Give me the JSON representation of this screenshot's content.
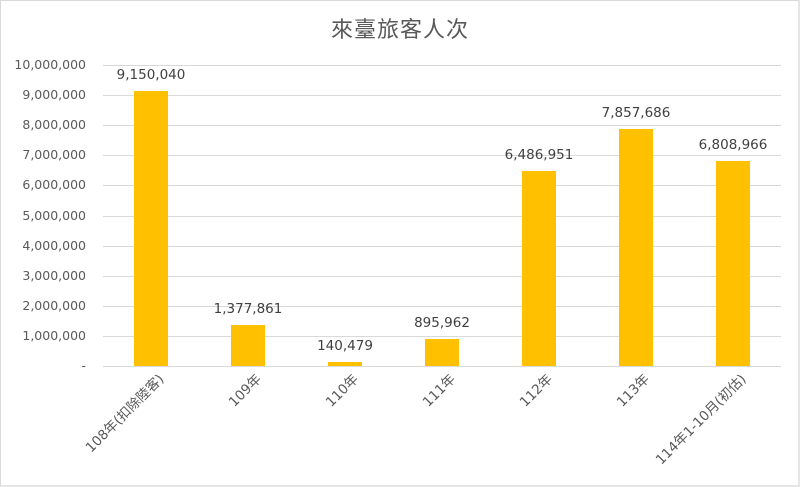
{
  "chart_data": {
    "type": "bar",
    "title": "來臺旅客人次",
    "xlabel": "",
    "ylabel": "",
    "ylim": [
      0,
      10000000
    ],
    "grid": true,
    "legend": null,
    "categories": [
      "108年(扣除陸客)",
      "109年",
      "110年",
      "111年",
      "112年",
      "113年",
      "114年1-10月(初估)"
    ],
    "values": [
      9150040,
      1377861,
      140479,
      895962,
      6486951,
      7857686,
      6808966
    ],
    "data_labels": [
      "9,150,040",
      "1,377,861",
      "140,479",
      "895,962",
      "6,486,951",
      "7,857,686",
      "6,808,966"
    ],
    "y_ticks": [
      "10,000,000",
      "9,000,000",
      "8,000,000",
      "7,000,000",
      "6,000,000",
      "5,000,000",
      "4,000,000",
      "3,000,000",
      "2,000,000",
      "1,000,000",
      "-"
    ],
    "bar_color": "#FFC000"
  }
}
